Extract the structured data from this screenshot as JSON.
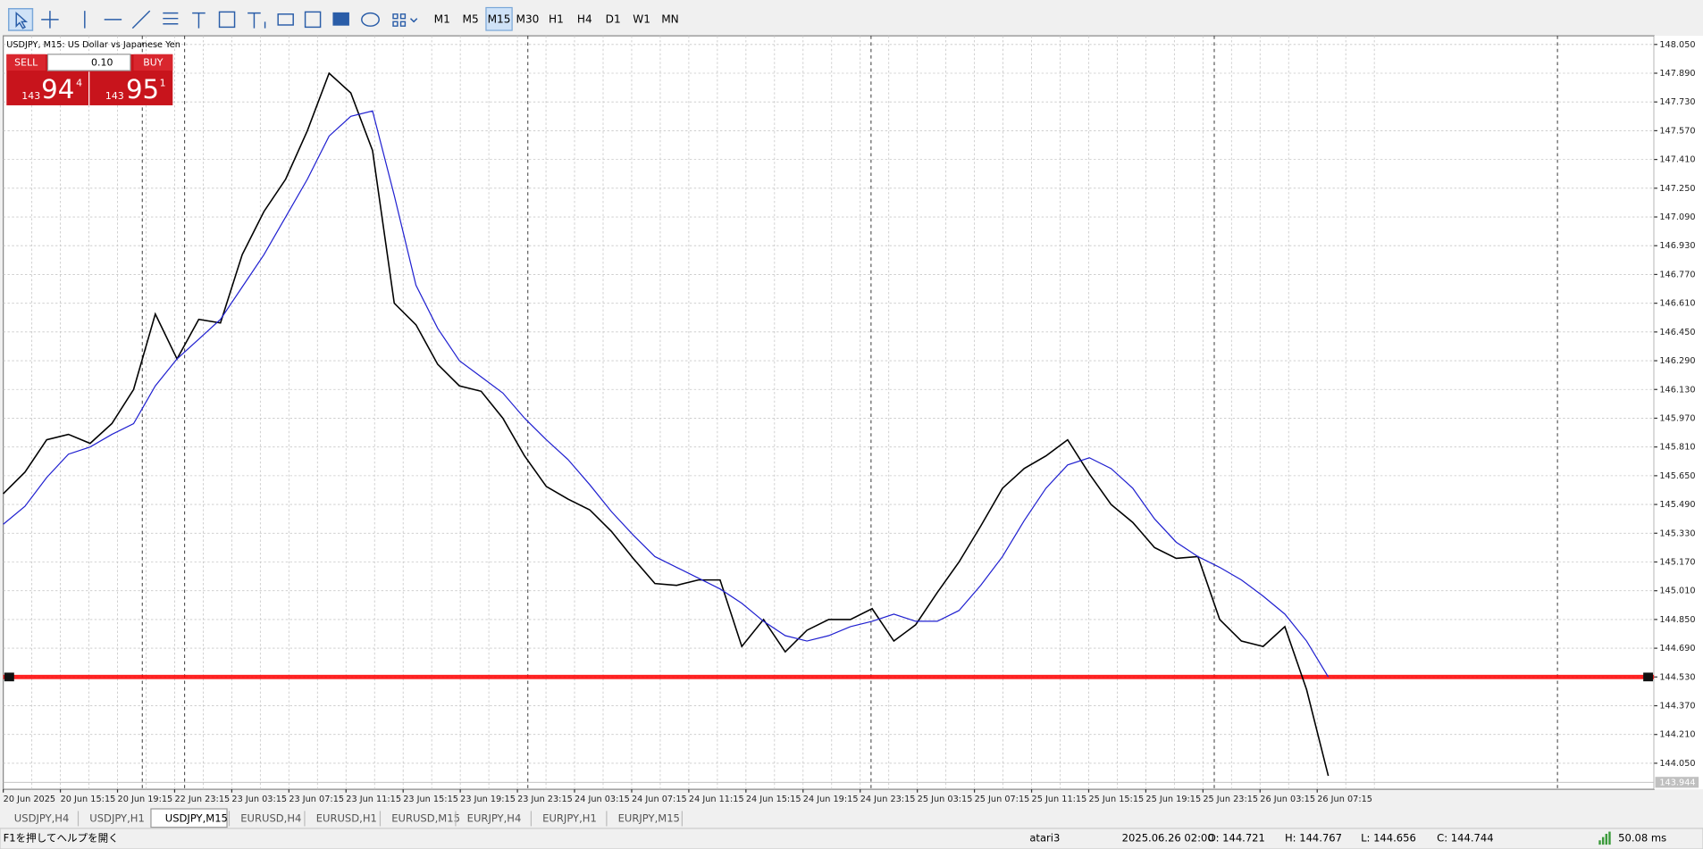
{
  "toolbar": {
    "timeframes": [
      "M1",
      "M5",
      "M15",
      "M30",
      "H1",
      "H4",
      "D1",
      "W1",
      "MN"
    ],
    "active": "M15"
  },
  "chart_header": "USDJPY, M15:  US Dollar vs Japanese Yen",
  "trade_panel": {
    "sell": "SELL",
    "buy": "BUY",
    "lot": "0.10",
    "bid": {
      "big": "143",
      "main": "94",
      "small": "4"
    },
    "ask": {
      "big": "143",
      "main": "95",
      "small": "1"
    }
  },
  "chart_data": {
    "type": "line",
    "series": [
      {
        "color": "#000000",
        "values": [
          145.55,
          145.67,
          145.85,
          145.88,
          145.83,
          145.94,
          146.13,
          146.55,
          146.3,
          146.52,
          146.5,
          146.88,
          147.12,
          147.3,
          147.57,
          147.89,
          147.78,
          147.46,
          146.61,
          146.49,
          146.27,
          146.15,
          146.12,
          145.97,
          145.76,
          145.59,
          145.52,
          145.46,
          145.34,
          145.19,
          145.05,
          145.04,
          145.07,
          145.07,
          144.7,
          144.85,
          144.67,
          144.79,
          144.85,
          144.85,
          144.91,
          144.73,
          144.82,
          145.0,
          145.17,
          145.37,
          145.58,
          145.69,
          145.76,
          145.85,
          145.66,
          145.49,
          145.39,
          145.25,
          145.19,
          145.2,
          144.85,
          144.73,
          144.7,
          144.81,
          144.46,
          143.98
        ]
      },
      {
        "color": "#2020d0",
        "values": [
          145.38,
          145.48,
          145.64,
          145.77,
          145.81,
          145.88,
          145.94,
          146.15,
          146.3,
          146.41,
          146.52,
          146.7,
          146.88,
          147.09,
          147.3,
          147.54,
          147.65,
          147.68,
          147.21,
          146.71,
          146.47,
          146.29,
          146.2,
          146.11,
          145.97,
          145.85,
          145.74,
          145.6,
          145.45,
          145.32,
          145.2,
          145.14,
          145.08,
          145.02,
          144.94,
          144.84,
          144.76,
          144.73,
          144.76,
          144.81,
          144.84,
          144.88,
          144.84,
          144.84,
          144.9,
          145.04,
          145.2,
          145.4,
          145.58,
          145.71,
          145.75,
          145.69,
          145.58,
          145.41,
          145.28,
          145.2,
          145.14,
          145.07,
          144.98,
          144.88,
          144.73,
          144.53
        ]
      }
    ],
    "hline": {
      "value": 144.53,
      "color": "#ff0000"
    },
    "current_price": 143.944,
    "ylim": [
      143.905,
      148.098
    ],
    "yticks": [
      {
        "value": 148.05,
        "label": "148.050"
      },
      {
        "value": 147.89,
        "label": "147.890"
      },
      {
        "value": 147.73,
        "label": "147.730"
      },
      {
        "value": 147.57,
        "label": "147.570"
      },
      {
        "value": 147.41,
        "label": "147.410"
      },
      {
        "value": 147.25,
        "label": "147.250"
      },
      {
        "value": 147.09,
        "label": "147.090"
      },
      {
        "value": 146.93,
        "label": "146.930"
      },
      {
        "value": 146.77,
        "label": "146.770"
      },
      {
        "value": 146.61,
        "label": "146.610"
      },
      {
        "value": 146.45,
        "label": "146.450"
      },
      {
        "value": 146.29,
        "label": "146.290"
      },
      {
        "value": 146.13,
        "label": "146.130"
      },
      {
        "value": 145.97,
        "label": "145.970"
      },
      {
        "value": 145.81,
        "label": "145.810"
      },
      {
        "value": 145.65,
        "label": "145.650"
      },
      {
        "value": 145.49,
        "label": "145.490"
      },
      {
        "value": 145.33,
        "label": "145.330"
      },
      {
        "value": 145.17,
        "label": "145.170"
      },
      {
        "value": 145.01,
        "label": "145.010"
      },
      {
        "value": 144.85,
        "label": "144.850"
      },
      {
        "value": 144.69,
        "label": "144.690"
      },
      {
        "value": 144.53,
        "label": "144.530"
      },
      {
        "value": 144.37,
        "label": "144.370"
      },
      {
        "value": 144.21,
        "label": "144.210"
      },
      {
        "value": 144.05,
        "label": "144.050"
      }
    ],
    "x_labels": [
      "20 Jun 2025",
      "20 Jun 15:15",
      "20 Jun 19:15",
      "22 Jun 23:15",
      "23 Jun 03:15",
      "23 Jun 07:15",
      "23 Jun 11:15",
      "23 Jun 15:15",
      "23 Jun 19:15",
      "23 Jun 23:15",
      "24 Jun 03:15",
      "24 Jun 07:15",
      "24 Jun 11:15",
      "24 Jun 15:15",
      "24 Jun 19:15",
      "24 Jun 23:15",
      "25 Jun 03:15",
      "25 Jun 07:15",
      "25 Jun 11:15",
      "25 Jun 15:15",
      "25 Jun 19:15",
      "25 Jun 23:15",
      "26 Jun 03:15",
      "26 Jun 07:15"
    ],
    "grid": true
  },
  "tabs": [
    "USDJPY,H4",
    "USDJPY,H1",
    "USDJPY,M15",
    "EURUSD,H4",
    "EURUSD,H1",
    "EURUSD,M15",
    "EURJPY,H4",
    "EURJPY,H1",
    "EURJPY,M15"
  ],
  "active_tab": "USDJPY,M15",
  "status_bar": {
    "help": "F1を押してヘルプを開く",
    "profile": "atari3",
    "time": "2025.06.26 02:00",
    "open": "O: 144.721",
    "high": "H: 144.767",
    "low": "L: 144.656",
    "close": "C: 144.744",
    "ping": "50.08 ms"
  }
}
